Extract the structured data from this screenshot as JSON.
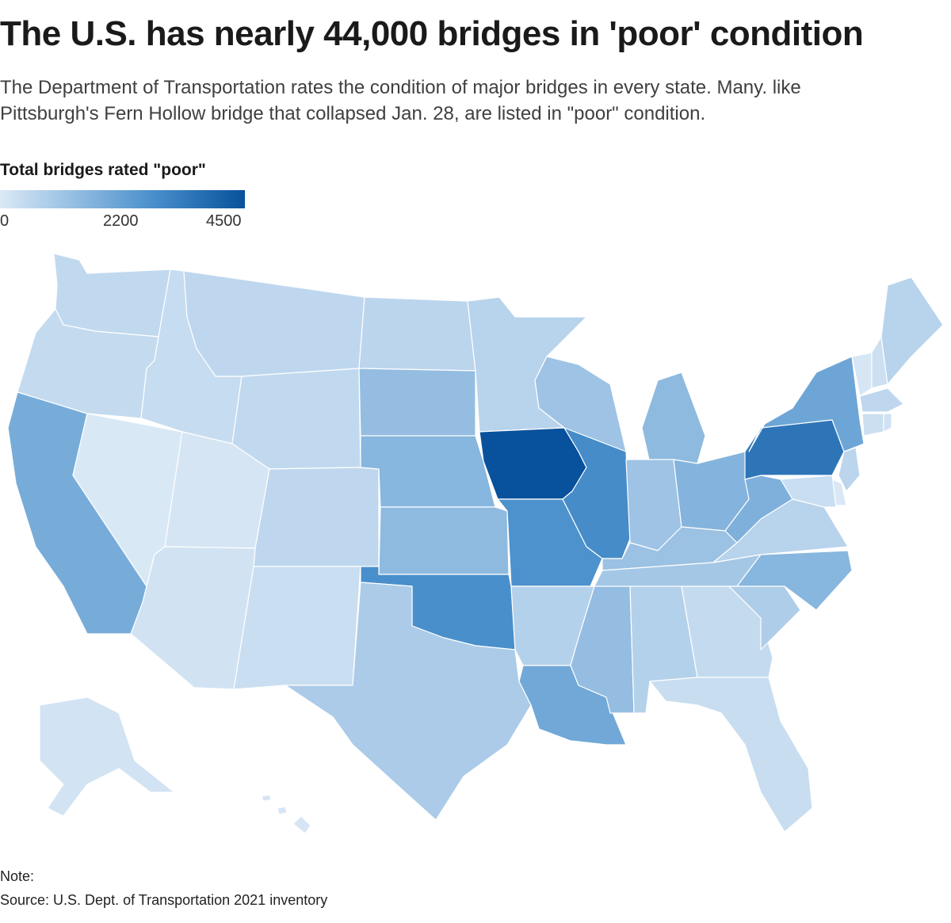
{
  "title": "The U.S. has nearly 44,000 bridges in 'poor' condition",
  "subtitle": "The Department of Transportation rates the condition of major bridges in every state. Many. like Pittsburgh's Fern Hollow bridge that collapsed Jan. 28, are listed in \"poor\" condition.",
  "legend": {
    "title": "Total bridges rated \"poor\"",
    "ticks": [
      "0",
      "2200",
      "4500"
    ],
    "min": 0,
    "max": 4500,
    "colors": [
      "#dbe9f6",
      "#4a90cc",
      "#08519c"
    ]
  },
  "footer": {
    "note": "Note:",
    "source": "Source: U.S. Dept. of Transportation 2021 inventory"
  },
  "chart_data": {
    "type": "choropleth",
    "value_label": "Total bridges rated \"poor\"",
    "color_range": [
      0,
      4500
    ],
    "states": [
      {
        "id": "WA",
        "value": 400
      },
      {
        "id": "OR",
        "value": 350
      },
      {
        "id": "CA",
        "value": 1550
      },
      {
        "id": "NV",
        "value": 30
      },
      {
        "id": "ID",
        "value": 330
      },
      {
        "id": "MT",
        "value": 450
      },
      {
        "id": "WY",
        "value": 400
      },
      {
        "id": "UT",
        "value": 90
      },
      {
        "id": "CO",
        "value": 450
      },
      {
        "id": "AZ",
        "value": 150
      },
      {
        "id": "NM",
        "value": 270
      },
      {
        "id": "ND",
        "value": 500
      },
      {
        "id": "SD",
        "value": 1100
      },
      {
        "id": "NE",
        "value": 1300
      },
      {
        "id": "KS",
        "value": 1200
      },
      {
        "id": "OK",
        "value": 2300
      },
      {
        "id": "TX",
        "value": 750
      },
      {
        "id": "MN",
        "value": 550
      },
      {
        "id": "IA",
        "value": 4500
      },
      {
        "id": "MO",
        "value": 2200
      },
      {
        "id": "AR",
        "value": 600
      },
      {
        "id": "LA",
        "value": 1650
      },
      {
        "id": "WI",
        "value": 950
      },
      {
        "id": "IL",
        "value": 2400
      },
      {
        "id": "MI",
        "value": 1200
      },
      {
        "id": "IN",
        "value": 950
      },
      {
        "id": "OH",
        "value": 1350
      },
      {
        "id": "KY",
        "value": 1000
      },
      {
        "id": "TN",
        "value": 850
      },
      {
        "id": "MS",
        "value": 1100
      },
      {
        "id": "AL",
        "value": 600
      },
      {
        "id": "GA",
        "value": 350
      },
      {
        "id": "FL",
        "value": 300
      },
      {
        "id": "SC",
        "value": 700
      },
      {
        "id": "NC",
        "value": 1300
      },
      {
        "id": "VA",
        "value": 550
      },
      {
        "id": "WV",
        "value": 1450
      },
      {
        "id": "PA",
        "value": 3200
      },
      {
        "id": "NY",
        "value": 1700
      },
      {
        "id": "VT",
        "value": 70
      },
      {
        "id": "NH",
        "value": 220
      },
      {
        "id": "ME",
        "value": 550
      },
      {
        "id": "MA",
        "value": 450
      },
      {
        "id": "CT",
        "value": 250
      },
      {
        "id": "RI",
        "value": 180
      },
      {
        "id": "NJ",
        "value": 500
      },
      {
        "id": "DE",
        "value": 20
      },
      {
        "id": "MD",
        "value": 280
      },
      {
        "id": "AK",
        "value": 140
      },
      {
        "id": "HI",
        "value": 90
      }
    ]
  }
}
